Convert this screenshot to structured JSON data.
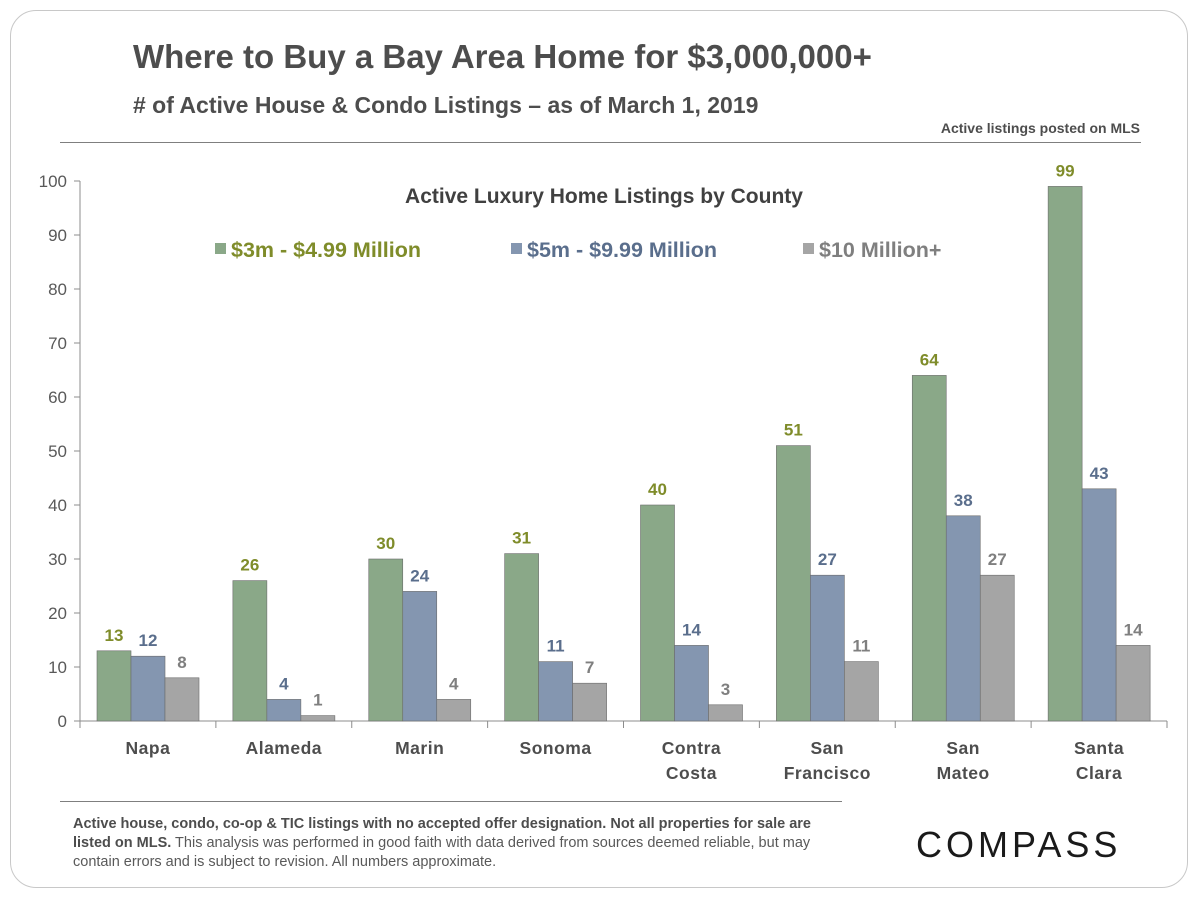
{
  "header": {
    "title": "Where to Buy a Bay Area Home for $3,000,000+",
    "subtitle": "# of Active House & Condo Listings – as of March 1, 2019",
    "source_note": "Active listings  posted on MLS"
  },
  "footer": {
    "note_bold": "Active house, condo, co-op & TIC listings with no accepted offer designation. Not all properties for sale are listed on MLS.",
    "note_regular": " This analysis was performed  in good faith with data derived  from sources deemed reliable,  but may contain errors and is subject to revision.  All numbers  approximate.",
    "logo": "COMPASS"
  },
  "colors": {
    "series1": "#8aa888",
    "series2": "#8496b0",
    "series3": "#a5a5a5",
    "label1": "#7f8c2a",
    "label2": "#5a6e8c",
    "label3": "#7f7f7f"
  },
  "chart_data": {
    "type": "bar",
    "title": "Active Luxury Home Listings by County",
    "categories": [
      [
        "Napa"
      ],
      [
        "Alameda"
      ],
      [
        "Marin"
      ],
      [
        "Sonoma"
      ],
      [
        "Contra",
        "Costa"
      ],
      [
        "San",
        "Francisco"
      ],
      [
        "San",
        "Mateo"
      ],
      [
        "Santa",
        "Clara"
      ]
    ],
    "series": [
      {
        "name": "$3m - $4.99 Million",
        "values": [
          13,
          26,
          30,
          31,
          40,
          51,
          64,
          99
        ]
      },
      {
        "name": "$5m - $9.99 Million",
        "values": [
          12,
          4,
          24,
          11,
          14,
          27,
          38,
          43
        ]
      },
      {
        "name": "$10 Million+",
        "values": [
          8,
          1,
          4,
          7,
          3,
          11,
          27,
          14
        ]
      }
    ],
    "ylim": [
      0,
      100
    ],
    "yticks": [
      0,
      10,
      20,
      30,
      40,
      50,
      60,
      70,
      80,
      90,
      100
    ],
    "legend_position": "top",
    "grid": false
  }
}
